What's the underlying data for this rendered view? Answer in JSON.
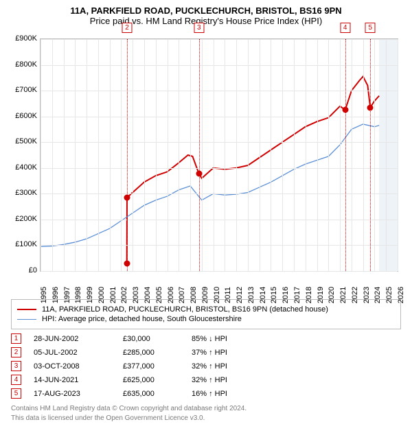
{
  "title": {
    "line1": "11A, PARKFIELD ROAD, PUCKLECHURCH, BRISTOL, BS16 9PN",
    "line2": "Price paid vs. HM Land Registry's House Price Index (HPI)"
  },
  "chart": {
    "type": "line",
    "background_color": "#ffffff",
    "grid_color": "#e6e6e6",
    "axis_color": "#bbbbbb",
    "future_band_color": "#eef3f8",
    "label_fontsize": 11,
    "x": {
      "min": 1995,
      "max": 2026,
      "ticks": [
        1995,
        1996,
        1997,
        1998,
        1999,
        2000,
        2001,
        2002,
        2003,
        2004,
        2005,
        2006,
        2007,
        2008,
        2009,
        2010,
        2011,
        2012,
        2013,
        2014,
        2015,
        2016,
        2017,
        2018,
        2019,
        2020,
        2021,
        2022,
        2023,
        2024,
        2025,
        2026
      ]
    },
    "y": {
      "min": 0,
      "max": 900000,
      "ticks": [
        0,
        100000,
        200000,
        300000,
        400000,
        500000,
        600000,
        700000,
        800000,
        900000
      ],
      "tick_labels": [
        "£0",
        "£100K",
        "£200K",
        "£300K",
        "£400K",
        "£500K",
        "£600K",
        "£700K",
        "£800K",
        "£900K"
      ]
    },
    "future_start": 2024.4,
    "series": [
      {
        "name": "property",
        "label": "11A, PARKFIELD ROAD, PUCKLECHURCH, BRISTOL, BS16 9PN (detached house)",
        "color": "#d00000",
        "line_width": 2,
        "points": [
          [
            2002.49,
            30000
          ],
          [
            2002.51,
            285000
          ],
          [
            2003,
            305000
          ],
          [
            2004,
            345000
          ],
          [
            2005,
            370000
          ],
          [
            2006,
            385000
          ],
          [
            2007,
            420000
          ],
          [
            2007.8,
            450000
          ],
          [
            2008.2,
            445000
          ],
          [
            2008.76,
            377000
          ],
          [
            2009,
            360000
          ],
          [
            2010,
            400000
          ],
          [
            2011,
            395000
          ],
          [
            2012,
            400000
          ],
          [
            2013,
            410000
          ],
          [
            2014,
            440000
          ],
          [
            2015,
            470000
          ],
          [
            2016,
            500000
          ],
          [
            2017,
            530000
          ],
          [
            2018,
            560000
          ],
          [
            2019,
            580000
          ],
          [
            2020,
            595000
          ],
          [
            2021,
            640000
          ],
          [
            2021.45,
            625000
          ],
          [
            2022,
            700000
          ],
          [
            2022.7,
            740000
          ],
          [
            2023,
            755000
          ],
          [
            2023.4,
            720000
          ],
          [
            2023.63,
            635000
          ],
          [
            2024,
            660000
          ],
          [
            2024.4,
            680000
          ]
        ]
      },
      {
        "name": "hpi",
        "label": "HPI: Average price, detached house, South Gloucestershire",
        "color": "#5b8fd6",
        "line_width": 1.3,
        "points": [
          [
            1995,
            95000
          ],
          [
            1996,
            97000
          ],
          [
            1997,
            103000
          ],
          [
            1998,
            112000
          ],
          [
            1999,
            125000
          ],
          [
            2000,
            145000
          ],
          [
            2001,
            165000
          ],
          [
            2002,
            195000
          ],
          [
            2003,
            225000
          ],
          [
            2004,
            255000
          ],
          [
            2005,
            275000
          ],
          [
            2006,
            290000
          ],
          [
            2007,
            315000
          ],
          [
            2008,
            330000
          ],
          [
            2009,
            275000
          ],
          [
            2010,
            300000
          ],
          [
            2011,
            295000
          ],
          [
            2012,
            298000
          ],
          [
            2013,
            305000
          ],
          [
            2014,
            325000
          ],
          [
            2015,
            345000
          ],
          [
            2016,
            370000
          ],
          [
            2017,
            395000
          ],
          [
            2018,
            415000
          ],
          [
            2019,
            430000
          ],
          [
            2020,
            445000
          ],
          [
            2021,
            490000
          ],
          [
            2022,
            550000
          ],
          [
            2023,
            570000
          ],
          [
            2024,
            560000
          ],
          [
            2024.4,
            565000
          ]
        ]
      }
    ],
    "markers": [
      {
        "idx": "1",
        "x": 2002.49,
        "y": 30000
      },
      {
        "idx": "2",
        "x": 2002.51,
        "y": 285000,
        "label_y": -24
      },
      {
        "idx": "3",
        "x": 2008.76,
        "y": 377000,
        "label_y": -24
      },
      {
        "idx": "4",
        "x": 2021.45,
        "y": 625000,
        "label_y": -24
      },
      {
        "idx": "5",
        "x": 2023.63,
        "y": 635000,
        "label_y": -24
      }
    ]
  },
  "legend": {
    "border_color": "#bbbbbb",
    "items": [
      {
        "color": "#d00000",
        "width": 2,
        "label": "11A, PARKFIELD ROAD, PUCKLECHURCH, BRISTOL, BS16 9PN (detached house)"
      },
      {
        "color": "#5b8fd6",
        "width": 1.3,
        "label": "HPI: Average price, detached house, South Gloucestershire"
      }
    ]
  },
  "sales": [
    {
      "idx": "1",
      "date": "28-JUN-2002",
      "price": "£30,000",
      "delta": "85% ↓ HPI"
    },
    {
      "idx": "2",
      "date": "05-JUL-2002",
      "price": "£285,000",
      "delta": "37% ↑ HPI"
    },
    {
      "idx": "3",
      "date": "03-OCT-2008",
      "price": "£377,000",
      "delta": "32% ↑ HPI"
    },
    {
      "idx": "4",
      "date": "14-JUN-2021",
      "price": "£625,000",
      "delta": "32% ↑ HPI"
    },
    {
      "idx": "5",
      "date": "17-AUG-2023",
      "price": "£635,000",
      "delta": "16% ↑ HPI"
    }
  ],
  "footer": {
    "line1": "Contains HM Land Registry data © Crown copyright and database right 2024.",
    "line2": "This data is licensed under the Open Government Licence v3.0."
  }
}
